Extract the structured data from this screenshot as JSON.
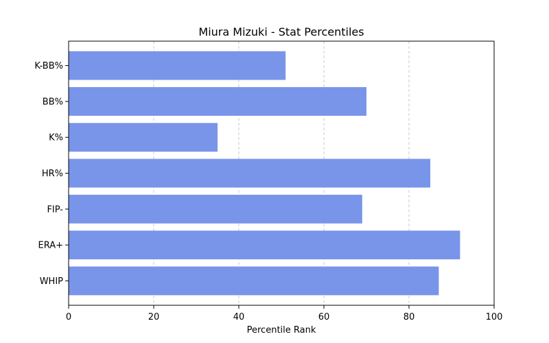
{
  "chart_data": {
    "type": "bar",
    "orientation": "horizontal",
    "title": "Miura Mizuki - Stat Percentiles",
    "xlabel": "Percentile Rank",
    "ylabel": "",
    "xlim": [
      0,
      100
    ],
    "xticks": [
      0,
      20,
      40,
      60,
      80,
      100
    ],
    "grid": "x-dashed",
    "categories": [
      "K-BB%",
      "BB%",
      "K%",
      "HR%",
      "FIP-",
      "ERA+",
      "WHIP"
    ],
    "values": [
      51,
      70,
      35,
      85,
      69,
      92,
      87
    ],
    "bar_color": "#7995e9",
    "grid_color": "#c8c8c8"
  }
}
